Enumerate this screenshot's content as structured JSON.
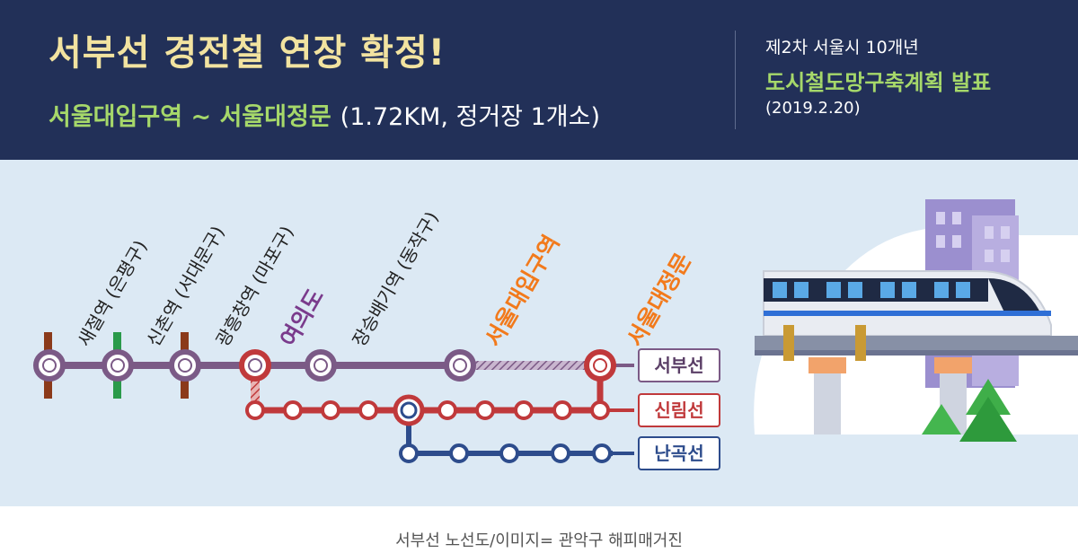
{
  "banner": {
    "headline": "서부선 경전철 연장 확정!",
    "subtitle_route": "서울대입구역 ~ 서울대정문",
    "subtitle_detail": "(1.72KM, 정거장 1개소)",
    "plan_top": "제2차 서울시 10개년",
    "plan_main": "도시철도망구축계획 발표",
    "plan_date": "(2019.2.20)"
  },
  "stations": [
    {
      "name": "새절역 (은평구)",
      "line_tick_color": "#8b3a1a"
    },
    {
      "name": "신촌역 (서대문구)",
      "line_tick_color": "#2a9a4a"
    },
    {
      "name": "광흥창역 (마포구)",
      "line_tick_color": "#8b3a1a"
    },
    {
      "name": "여의도",
      "line_tick_color": ""
    },
    {
      "name": "장승배기역 (동작구)",
      "line_tick_color": ""
    },
    {
      "name": "서울대입구역",
      "line_tick_color": ""
    },
    {
      "name": "서울대정문",
      "line_tick_color": ""
    }
  ],
  "lines": [
    {
      "name": "서부선",
      "color": "#7b5a86"
    },
    {
      "name": "신림선",
      "color": "#c0393b"
    },
    {
      "name": "난곡선",
      "color": "#2d4c8c"
    }
  ],
  "colors": {
    "banner_bg": "#223058",
    "map_bg": "#dce9f4",
    "headline": "#f2e3a0",
    "accent_green": "#a6d86a",
    "highlight_orange": "#f27a1c",
    "highlight_purple": "#7a3b8c"
  },
  "caption": "서부선 노선도/이미지= 관악구 해피매거진"
}
